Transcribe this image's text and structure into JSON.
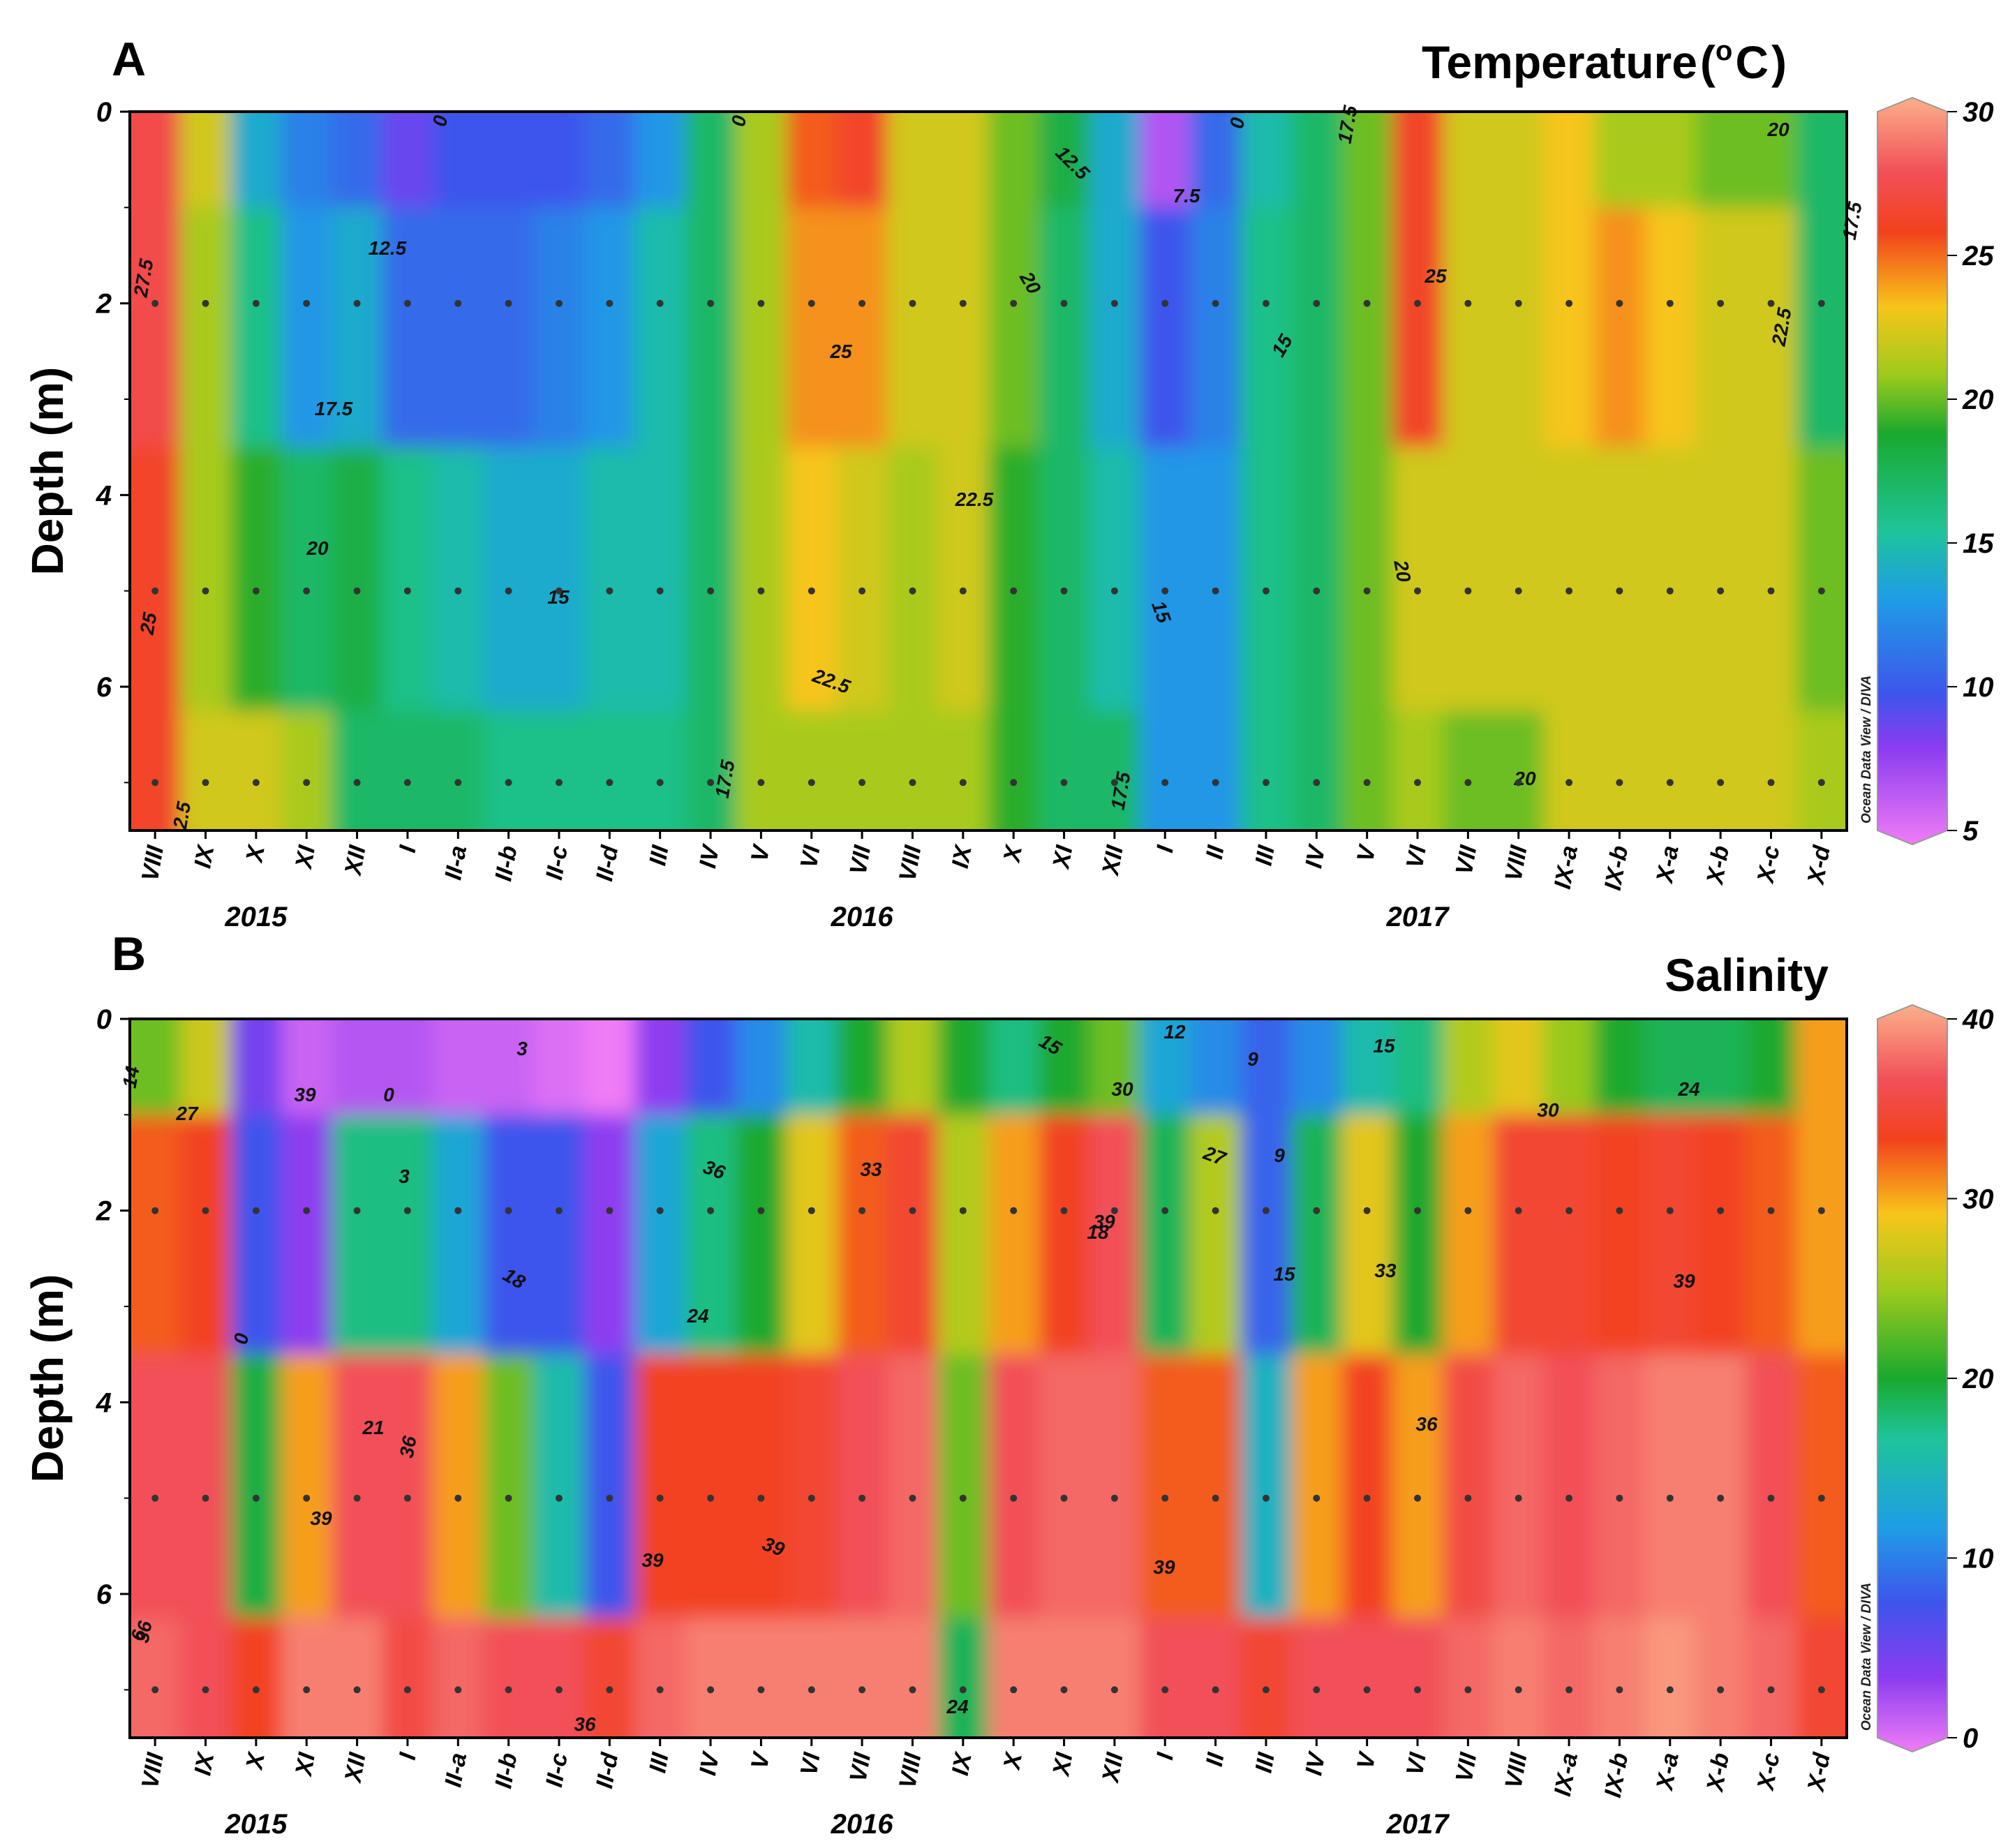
{
  "chart_data": [
    {
      "type": "heatmap",
      "panel_label": "A",
      "title": "Temperature",
      "title_unit_base": "C",
      "title_unit_sup": "o",
      "ylabel": "Depth (m)",
      "xlabel": "",
      "ylim": [
        0,
        7.5
      ],
      "yticks": [
        "0",
        "2",
        "4",
        "6"
      ],
      "categories": [
        "VIII",
        "IX",
        "X",
        "XI",
        "XII",
        "I",
        "II-a",
        "II-b",
        "II-c",
        "II-d",
        "III",
        "IV",
        "V",
        "VI",
        "VII",
        "VIII",
        "IX",
        "X",
        "XI",
        "XII",
        "I",
        "II",
        "III",
        "IV",
        "V",
        "VI",
        "VII",
        "VIII",
        "IX-a",
        "IX-b",
        "X-a",
        "X-b",
        "X-c",
        "X-d"
      ],
      "years": [
        {
          "label": "2015",
          "at_category": 2
        },
        {
          "label": "2016",
          "at_category": 14
        },
        {
          "label": "2017",
          "at_category": 25
        }
      ],
      "colorbar": {
        "min": 5,
        "max": 30,
        "ticks": [
          "30",
          "25",
          "20",
          "15",
          "10",
          "5"
        ]
      },
      "sample_depths": [
        2,
        5,
        7
      ],
      "values": [
        [
          27,
          27,
          26,
          26
        ],
        [
          22,
          21,
          21,
          22
        ],
        [
          14,
          16,
          19,
          22
        ],
        [
          12,
          13,
          17,
          21
        ],
        [
          11,
          14,
          18,
          17
        ],
        [
          9,
          11,
          16,
          17
        ],
        [
          10,
          11,
          15,
          17
        ],
        [
          10,
          11,
          14,
          16
        ],
        [
          10,
          12,
          14,
          16
        ],
        [
          11,
          13,
          15,
          16
        ],
        [
          13,
          15,
          15,
          16
        ],
        [
          17,
          17,
          17,
          17
        ],
        [
          21,
          21,
          21,
          21
        ],
        [
          25,
          24,
          23,
          21
        ],
        [
          26,
          24,
          22,
          21
        ],
        [
          22,
          22,
          21,
          21
        ],
        [
          22,
          22,
          22,
          21
        ],
        [
          20,
          20,
          19,
          19
        ],
        [
          18,
          17,
          17,
          17
        ],
        [
          14,
          14,
          15,
          17
        ],
        [
          7,
          10,
          13,
          13
        ],
        [
          11,
          12,
          13,
          13
        ],
        [
          15,
          16,
          16,
          16
        ],
        [
          17,
          17,
          17,
          17
        ],
        [
          20,
          20,
          20,
          20
        ],
        [
          26,
          26,
          22,
          21
        ],
        [
          22,
          22,
          22,
          20
        ],
        [
          22,
          22,
          22,
          20
        ],
        [
          23,
          23,
          22,
          22
        ],
        [
          21,
          24,
          22,
          22
        ],
        [
          21,
          23,
          22,
          22
        ],
        [
          20,
          22,
          22,
          22
        ],
        [
          20,
          22,
          22,
          22
        ],
        [
          17,
          17,
          20,
          21
        ]
      ],
      "contour_labels": [
        "27.5",
        "25",
        "2.5",
        "12.5",
        "17.5",
        "20",
        "0",
        "15",
        "0",
        "25",
        "22.5",
        "22.5",
        "17.5",
        "12.5",
        "20",
        "7.5",
        "0",
        "17.5",
        "15",
        "15",
        "17.5",
        "25",
        "20",
        "20",
        "22.5",
        "20",
        "17.5"
      ],
      "credit": "Ocean Data View / DIVA"
    },
    {
      "type": "heatmap",
      "panel_label": "B",
      "title": "Salinity",
      "ylabel": "Depth (m)",
      "xlabel": "",
      "ylim": [
        0,
        7.5
      ],
      "yticks": [
        "0",
        "2",
        "4",
        "6"
      ],
      "categories": [
        "VIII",
        "IX",
        "X",
        "XI",
        "XII",
        "I",
        "II-a",
        "II-b",
        "II-c",
        "II-d",
        "III",
        "IV",
        "V",
        "VI",
        "VII",
        "VIII",
        "IX",
        "X",
        "XI",
        "XII",
        "I",
        "II",
        "III",
        "IV",
        "V",
        "VI",
        "VII",
        "VIII",
        "IX-a",
        "IX-b",
        "X-a",
        "X-b",
        "X-c",
        "X-d"
      ],
      "years": [
        {
          "label": "2015",
          "at_category": 2
        },
        {
          "label": "2016",
          "at_category": 14
        },
        {
          "label": "2017",
          "at_category": 25
        }
      ],
      "colorbar": {
        "min": 0,
        "max": 40,
        "ticks": [
          "40",
          "30",
          "20",
          "10",
          "0"
        ]
      },
      "sample_depths": [
        2,
        5,
        7
      ],
      "values": [
        [
          24,
          32,
          36,
          37
        ],
        [
          27,
          33,
          36,
          36
        ],
        [
          6,
          8,
          21,
          33
        ],
        [
          2,
          5,
          30,
          38
        ],
        [
          3,
          18,
          36,
          38
        ],
        [
          3,
          18,
          36,
          35
        ],
        [
          2,
          14,
          30,
          37
        ],
        [
          2,
          8,
          24,
          36
        ],
        [
          1,
          8,
          16,
          36
        ],
        [
          0,
          5,
          8,
          34
        ],
        [
          5,
          14,
          33,
          37
        ],
        [
          8,
          18,
          33,
          38
        ],
        [
          12,
          22,
          33,
          38
        ],
        [
          16,
          28,
          34,
          38
        ],
        [
          22,
          32,
          36,
          38
        ],
        [
          26,
          34,
          37,
          38
        ],
        [
          22,
          26,
          24,
          20
        ],
        [
          18,
          30,
          36,
          38
        ],
        [
          22,
          33,
          37,
          38
        ],
        [
          24,
          36,
          37,
          38
        ],
        [
          14,
          20,
          32,
          36
        ],
        [
          12,
          26,
          32,
          36
        ],
        [
          9,
          9,
          15,
          34
        ],
        [
          12,
          20,
          30,
          36
        ],
        [
          16,
          28,
          33,
          36
        ],
        [
          18,
          22,
          30,
          36
        ],
        [
          26,
          30,
          35,
          37
        ],
        [
          28,
          34,
          37,
          38
        ],
        [
          25,
          34,
          36,
          37
        ],
        [
          22,
          33,
          37,
          38
        ],
        [
          20,
          34,
          38,
          39
        ],
        [
          20,
          33,
          38,
          38
        ],
        [
          22,
          32,
          36,
          37
        ],
        [
          30,
          30,
          32,
          34
        ]
      ],
      "contour_labels": [
        "14",
        "27",
        "36",
        "39",
        "0",
        "3",
        "3",
        "0",
        "18",
        "21",
        "24",
        "36",
        "33",
        "15",
        "30",
        "18",
        "24",
        "12",
        "9",
        "27",
        "9",
        "15",
        "15",
        "33",
        "30",
        "24",
        "39",
        "39",
        "36",
        "36",
        "39",
        "39",
        "39",
        "39",
        "6",
        "36"
      ],
      "credit": "Ocean Data View / DIVA"
    }
  ]
}
